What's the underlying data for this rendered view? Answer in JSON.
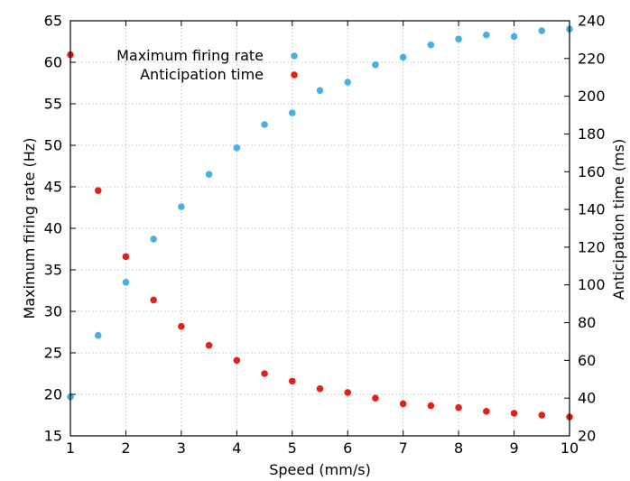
{
  "chart_data": {
    "type": "scatter",
    "xlabel": "Speed (mm/s)",
    "ylabel": "Maximum firing rate (Hz)",
    "y2label": "Anticipation time (ms)",
    "xlim": [
      1,
      10
    ],
    "ylim": [
      15,
      65
    ],
    "y2lim": [
      20,
      240
    ],
    "xticks": [
      1,
      2,
      3,
      4,
      5,
      6,
      7,
      8,
      9,
      10
    ],
    "yticks": [
      15,
      20,
      25,
      30,
      35,
      40,
      45,
      50,
      55,
      60,
      65
    ],
    "y2ticks": [
      20,
      40,
      60,
      80,
      100,
      120,
      140,
      160,
      180,
      200,
      220,
      240
    ],
    "grid": true,
    "legend_position": "top-center",
    "series": [
      {
        "name": "Maximum firing rate",
        "axis": "left",
        "color": "#4ab0e4",
        "x": [
          1,
          1.5,
          2,
          2.5,
          3,
          3.5,
          4,
          4.5,
          5,
          5.5,
          6,
          6.5,
          7,
          7.5,
          8,
          8.5,
          9,
          9.5,
          10
        ],
        "y": [
          19.7,
          27.1,
          33.5,
          38.7,
          42.6,
          46.5,
          49.7,
          52.5,
          53.9,
          56.6,
          57.6,
          59.7,
          60.6,
          62.1,
          62.8,
          63.3,
          63.1,
          63.8,
          64.0
        ]
      },
      {
        "name": "Anticipation time",
        "axis": "right",
        "color": "#e0231a",
        "x": [
          1,
          1.5,
          2,
          2.5,
          3,
          3.5,
          4,
          4.5,
          5,
          5.5,
          6,
          6.5,
          7,
          7.5,
          8,
          8.5,
          9,
          9.5,
          10
        ],
        "y": [
          222,
          150,
          115,
          92,
          78,
          68,
          60,
          53,
          49,
          45,
          43,
          40,
          37,
          36,
          35,
          33,
          32,
          31,
          30
        ]
      }
    ]
  }
}
